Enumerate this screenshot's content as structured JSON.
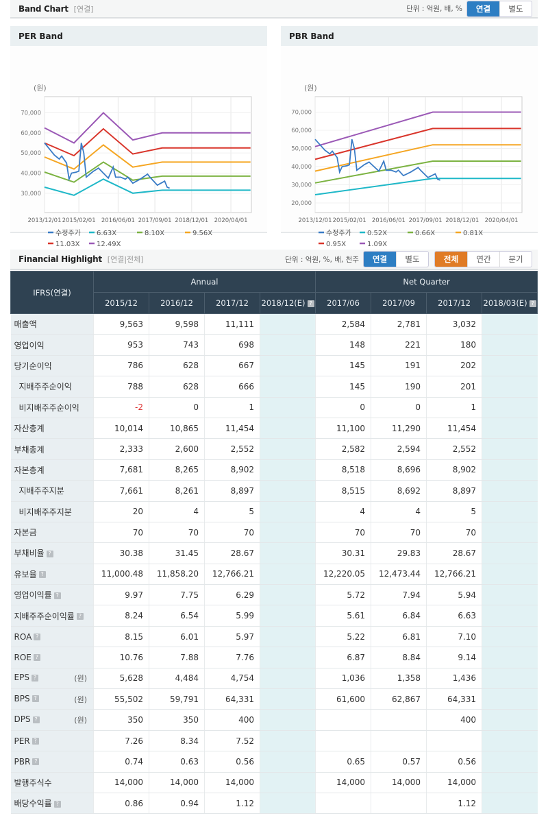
{
  "band_chart": {
    "title": "Band Chart",
    "sub": "[연결]",
    "unit": "단위 : 억원, 배, %",
    "toggle": [
      "연결",
      "별도"
    ],
    "selected": "연결"
  },
  "chart_data": [
    {
      "type": "line",
      "title": "PER Band",
      "ylabel": "(원)",
      "ylim": [
        20400,
        78000
      ],
      "xlim": [
        "2013-12",
        "2020-12"
      ],
      "yticks": [
        "30,000",
        "40,000",
        "50,000",
        "60,000",
        "70,000"
      ],
      "ytick_values": [
        30000,
        40000,
        50000,
        60000,
        70000
      ],
      "xticks": [
        "2013/12/01",
        "2015/02/01",
        "2016/06/01",
        "2017/09/01",
        "2018/12/01",
        "2020/04/01"
      ],
      "grid": true,
      "legend": "bottom",
      "series": [
        {
          "name": "수정주가",
          "color": "#3a7cc6",
          "x": [
            "2013-12",
            "2014-02",
            "2014-04",
            "2014-06",
            "2014-07",
            "2014-09",
            "2014-10",
            "2014-11",
            "2015-01",
            "2015-02",
            "2015-03",
            "2015-04",
            "2015-05",
            "2015-07",
            "2015-08",
            "2015-10",
            "2015-12",
            "2016-02",
            "2016-04",
            "2016-05",
            "2016-07",
            "2016-09",
            "2016-10",
            "2016-12",
            "2017-03",
            "2017-06",
            "2017-07",
            "2017-10",
            "2018-01",
            "2018-02",
            "2018-03"
          ],
          "values": [
            55000,
            52000,
            49000,
            47000,
            48500,
            45000,
            37000,
            40000,
            40500,
            41000,
            55000,
            50000,
            38000,
            40000,
            41000,
            42500,
            40000,
            37500,
            43000,
            38000,
            38000,
            37000,
            38000,
            35000,
            37000,
            39500,
            38000,
            34000,
            36000,
            33000,
            32500
          ]
        },
        {
          "name": "6.63X",
          "color": "#1fb8c8",
          "x": [
            "2013-12",
            "2014-12",
            "2015-12",
            "2016-12",
            "2017-12",
            "2020-12"
          ],
          "values": [
            33000,
            29000,
            37000,
            30000,
            31500,
            31500
          ]
        },
        {
          "name": "8.10X",
          "color": "#7cb342",
          "x": [
            "2013-12",
            "2014-12",
            "2015-12",
            "2016-12",
            "2017-12",
            "2020-12"
          ],
          "values": [
            40500,
            35500,
            45500,
            36500,
            38500,
            38500
          ]
        },
        {
          "name": "9.56X",
          "color": "#f5a623",
          "x": [
            "2013-12",
            "2014-12",
            "2015-12",
            "2016-12",
            "2017-12",
            "2020-12"
          ],
          "values": [
            48000,
            42000,
            54000,
            43000,
            45500,
            45500
          ]
        },
        {
          "name": "11.03X",
          "color": "#d9352b",
          "x": [
            "2013-12",
            "2014-12",
            "2015-12",
            "2016-12",
            "2017-12",
            "2020-12"
          ],
          "values": [
            55000,
            48700,
            62000,
            49500,
            52500,
            52500
          ]
        },
        {
          "name": "12.49X",
          "color": "#9b59b6",
          "x": [
            "2013-12",
            "2014-12",
            "2015-12",
            "2016-12",
            "2017-12",
            "2020-12"
          ],
          "values": [
            62500,
            55000,
            70000,
            56500,
            60000,
            60000
          ]
        }
      ]
    },
    {
      "type": "line",
      "title": "PBR Band",
      "ylabel": "(원)",
      "ylim": [
        14700,
        78500
      ],
      "xlim": [
        "2013-12",
        "2020-12"
      ],
      "yticks": [
        "20,000",
        "30,000",
        "40,000",
        "50,000",
        "60,000",
        "70,000"
      ],
      "ytick_values": [
        20000,
        30000,
        40000,
        50000,
        60000,
        70000
      ],
      "xticks": [
        "2013/12/01",
        "2015/02/01",
        "2016/06/01",
        "2017/09/01",
        "2018/12/01",
        "2020/04/01"
      ],
      "grid": true,
      "legend": "bottom",
      "series": [
        {
          "name": "수정주가",
          "color": "#3a7cc6",
          "x": [
            "2013-12",
            "2014-02",
            "2014-04",
            "2014-06",
            "2014-07",
            "2014-09",
            "2014-10",
            "2014-11",
            "2015-01",
            "2015-02",
            "2015-03",
            "2015-04",
            "2015-05",
            "2015-07",
            "2015-08",
            "2015-10",
            "2015-12",
            "2016-02",
            "2016-04",
            "2016-05",
            "2016-07",
            "2016-09",
            "2016-10",
            "2016-12",
            "2017-03",
            "2017-06",
            "2017-07",
            "2017-10",
            "2018-01",
            "2018-02",
            "2018-03"
          ],
          "values": [
            55000,
            52000,
            49000,
            47000,
            48500,
            45000,
            37000,
            40000,
            40500,
            41000,
            55000,
            50000,
            38000,
            40000,
            41000,
            42500,
            40000,
            37500,
            43000,
            38000,
            38000,
            37000,
            38000,
            35000,
            37000,
            39500,
            38000,
            34000,
            36000,
            33000,
            32500
          ]
        },
        {
          "name": "0.52X",
          "color": "#1fb8c8",
          "x": [
            "2013-12",
            "2017-12",
            "2020-12"
          ],
          "values": [
            24500,
            33500,
            33500
          ]
        },
        {
          "name": "0.66X",
          "color": "#7cb342",
          "x": [
            "2013-12",
            "2017-12",
            "2020-12"
          ],
          "values": [
            31000,
            43000,
            43000
          ]
        },
        {
          "name": "0.81X",
          "color": "#f5a623",
          "x": [
            "2013-12",
            "2017-12",
            "2020-12"
          ],
          "values": [
            37500,
            52000,
            52000
          ]
        },
        {
          "name": "0.95X",
          "color": "#d9352b",
          "x": [
            "2013-12",
            "2017-12",
            "2020-12"
          ],
          "values": [
            44000,
            61000,
            61000
          ]
        },
        {
          "name": "1.09X",
          "color": "#9b59b6",
          "x": [
            "2013-12",
            "2017-12",
            "2020-12"
          ],
          "values": [
            51000,
            70000,
            70000
          ]
        }
      ]
    }
  ],
  "financial": {
    "title": "Financial Highlight",
    "sub": "[연결|전체]",
    "unit": "단위 : 억원, %, 배, 천주",
    "toggle": [
      "연결",
      "별도"
    ],
    "selected": "연결",
    "period": [
      "전체",
      "연간",
      "분기"
    ],
    "period_selected": "전체",
    "corner": "IFRS(연결)",
    "group_annual": "Annual",
    "group_quarter": "Net Quarter",
    "columns": [
      "2015/12",
      "2016/12",
      "2017/12",
      "2018/12(E)",
      "2017/06",
      "2017/09",
      "2017/12",
      "2018/03(E)"
    ],
    "rows": [
      {
        "label": "매출액",
        "values": [
          "9,563",
          "9,598",
          "11,111",
          "",
          "2,584",
          "2,781",
          "3,032",
          ""
        ]
      },
      {
        "label": "영업이익",
        "values": [
          "953",
          "743",
          "698",
          "",
          "148",
          "221",
          "180",
          ""
        ]
      },
      {
        "label": "당기순이익",
        "values": [
          "786",
          "628",
          "667",
          "",
          "145",
          "191",
          "202",
          ""
        ]
      },
      {
        "label": "지배주주순이익",
        "indent": true,
        "values": [
          "788",
          "628",
          "666",
          "",
          "145",
          "190",
          "201",
          ""
        ]
      },
      {
        "label": "비지배주주순이익",
        "indent": true,
        "values": [
          "-2",
          "0",
          "1",
          "",
          "0",
          "0",
          "1",
          ""
        ]
      },
      {
        "label": "자산총계",
        "values": [
          "10,014",
          "10,865",
          "11,454",
          "",
          "11,100",
          "11,290",
          "11,454",
          ""
        ]
      },
      {
        "label": "부채총계",
        "values": [
          "2,333",
          "2,600",
          "2,552",
          "",
          "2,582",
          "2,594",
          "2,552",
          ""
        ]
      },
      {
        "label": "자본총계",
        "values": [
          "7,681",
          "8,265",
          "8,902",
          "",
          "8,518",
          "8,696",
          "8,902",
          ""
        ]
      },
      {
        "label": "지배주주지분",
        "indent": true,
        "values": [
          "7,661",
          "8,261",
          "8,897",
          "",
          "8,515",
          "8,692",
          "8,897",
          ""
        ]
      },
      {
        "label": "비지배주주지분",
        "indent": true,
        "values": [
          "20",
          "4",
          "5",
          "",
          "4",
          "4",
          "5",
          ""
        ]
      },
      {
        "label": "자본금",
        "values": [
          "70",
          "70",
          "70",
          "",
          "70",
          "70",
          "70",
          ""
        ]
      },
      {
        "label": "부채비율",
        "help": true,
        "values": [
          "30.38",
          "31.45",
          "28.67",
          "",
          "30.31",
          "29.83",
          "28.67",
          ""
        ]
      },
      {
        "label": "유보율",
        "help": true,
        "values": [
          "11,000.48",
          "11,858.20",
          "12,766.21",
          "",
          "12,220.05",
          "12,473.44",
          "12,766.21",
          ""
        ]
      },
      {
        "label": "영업이익률",
        "help": true,
        "values": [
          "9.97",
          "7.75",
          "6.29",
          "",
          "5.72",
          "7.94",
          "5.94",
          ""
        ]
      },
      {
        "label": "지배주주순이익률",
        "help": true,
        "values": [
          "8.24",
          "6.54",
          "5.99",
          "",
          "5.61",
          "6.84",
          "6.63",
          ""
        ]
      },
      {
        "label": "ROA",
        "help": true,
        "values": [
          "8.15",
          "6.01",
          "5.97",
          "",
          "5.22",
          "6.81",
          "7.10",
          ""
        ]
      },
      {
        "label": "ROE",
        "help": true,
        "values": [
          "10.76",
          "7.88",
          "7.76",
          "",
          "6.87",
          "8.84",
          "9.14",
          ""
        ]
      },
      {
        "label": "EPS",
        "help": true,
        "unit": "(원)",
        "values": [
          "5,628",
          "4,484",
          "4,754",
          "",
          "1,036",
          "1,358",
          "1,436",
          ""
        ]
      },
      {
        "label": "BPS",
        "help": true,
        "unit": "(원)",
        "values": [
          "55,502",
          "59,791",
          "64,331",
          "",
          "61,600",
          "62,867",
          "64,331",
          ""
        ]
      },
      {
        "label": "DPS",
        "help": true,
        "unit": "(원)",
        "values": [
          "350",
          "350",
          "400",
          "",
          "",
          "",
          "400",
          ""
        ]
      },
      {
        "label": "PER",
        "help": true,
        "values": [
          "7.26",
          "8.34",
          "7.52",
          "",
          "",
          "",
          "",
          ""
        ]
      },
      {
        "label": "PBR",
        "help": true,
        "values": [
          "0.74",
          "0.63",
          "0.56",
          "",
          "0.65",
          "0.57",
          "0.56",
          ""
        ]
      },
      {
        "label": "발행주식수",
        "values": [
          "14,000",
          "14,000",
          "14,000",
          "",
          "14,000",
          "14,000",
          "14,000",
          ""
        ]
      },
      {
        "label": "배당수익률",
        "help": true,
        "values": [
          "0.86",
          "0.94",
          "1.12",
          "",
          "",
          "",
          "1.12",
          ""
        ]
      }
    ]
  }
}
